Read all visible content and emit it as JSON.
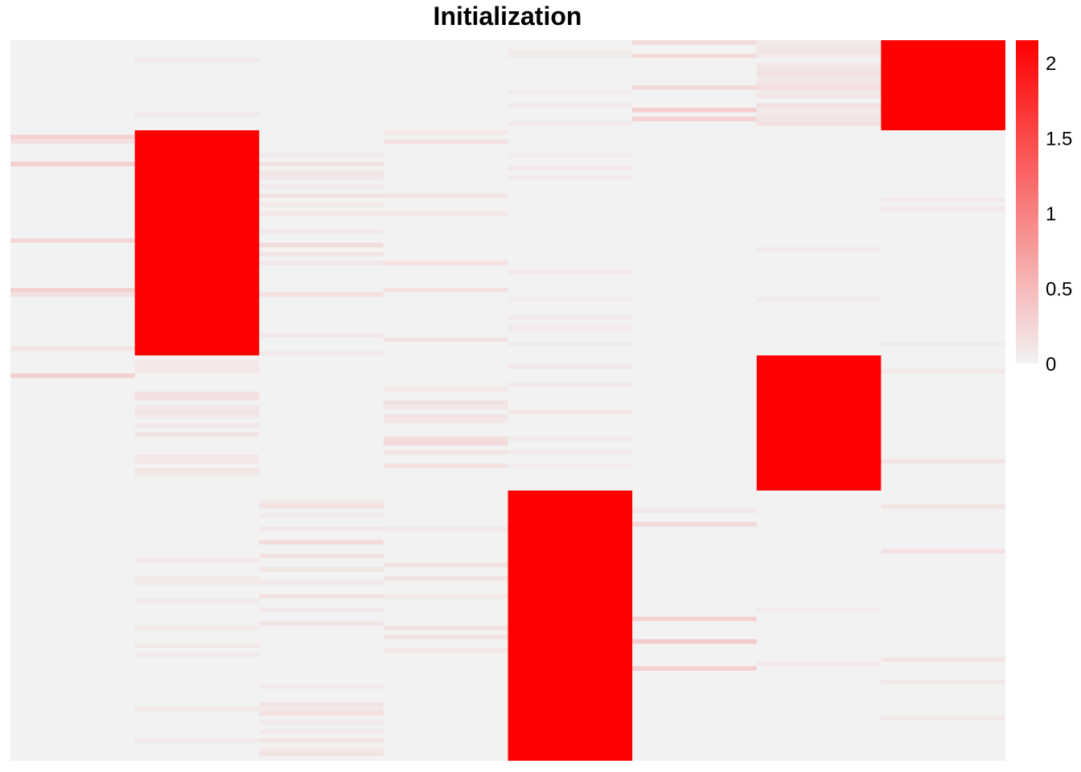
{
  "chart_data": {
    "type": "heatmap",
    "title": "Initialization",
    "n_columns": 8,
    "n_rows": 160,
    "value_range": [
      0,
      2.15
    ],
    "colorscale": {
      "low": "#f2f2f2",
      "high": "#ff0000"
    },
    "background_value": 0,
    "blocks": [
      {
        "column": 1,
        "row_start": 20,
        "row_end": 69,
        "value": 2.15
      },
      {
        "column": 7,
        "row_start": 0,
        "row_end": 19,
        "value": 2.15
      },
      {
        "column": 6,
        "row_start": 70,
        "row_end": 99,
        "value": 2.15
      },
      {
        "column": 4,
        "row_start": 100,
        "row_end": 159,
        "value": 2.15
      }
    ],
    "scattered_cells": [
      [
        0,
        21,
        0.3
      ],
      [
        0,
        22,
        0.15
      ],
      [
        0,
        27,
        0.3
      ],
      [
        0,
        44,
        0.25
      ],
      [
        0,
        55,
        0.3
      ],
      [
        0,
        56,
        0.15
      ],
      [
        0,
        68,
        0.12
      ],
      [
        0,
        74,
        0.3
      ],
      [
        1,
        4,
        0.08
      ],
      [
        1,
        16,
        0.08
      ],
      [
        1,
        71,
        0.1
      ],
      [
        1,
        72,
        0.1
      ],
      [
        1,
        73,
        0.1
      ],
      [
        1,
        78,
        0.15
      ],
      [
        1,
        79,
        0.15
      ],
      [
        1,
        81,
        0.1
      ],
      [
        1,
        82,
        0.12
      ],
      [
        1,
        83,
        0.08
      ],
      [
        1,
        85,
        0.1
      ],
      [
        1,
        87,
        0.12
      ],
      [
        1,
        92,
        0.1
      ],
      [
        1,
        93,
        0.1
      ],
      [
        1,
        95,
        0.12
      ],
      [
        1,
        96,
        0.08
      ],
      [
        1,
        115,
        0.1
      ],
      [
        1,
        119,
        0.1
      ],
      [
        1,
        120,
        0.08
      ],
      [
        1,
        124,
        0.08
      ],
      [
        1,
        130,
        0.08
      ],
      [
        1,
        134,
        0.1
      ],
      [
        1,
        136,
        0.08
      ],
      [
        1,
        148,
        0.1
      ],
      [
        1,
        155,
        0.08
      ],
      [
        2,
        25,
        0.08
      ],
      [
        2,
        27,
        0.15
      ],
      [
        2,
        29,
        0.12
      ],
      [
        2,
        30,
        0.1
      ],
      [
        2,
        32,
        0.08
      ],
      [
        2,
        34,
        0.15
      ],
      [
        2,
        36,
        0.1
      ],
      [
        2,
        38,
        0.1
      ],
      [
        2,
        42,
        0.08
      ],
      [
        2,
        45,
        0.2
      ],
      [
        2,
        47,
        0.12
      ],
      [
        2,
        49,
        0.1
      ],
      [
        2,
        56,
        0.15
      ],
      [
        2,
        65,
        0.1
      ],
      [
        2,
        69,
        0.08
      ],
      [
        2,
        102,
        0.08
      ],
      [
        2,
        103,
        0.15
      ],
      [
        2,
        105,
        0.08
      ],
      [
        2,
        108,
        0.1
      ],
      [
        2,
        111,
        0.2
      ],
      [
        2,
        114,
        0.15
      ],
      [
        2,
        117,
        0.12
      ],
      [
        2,
        120,
        0.1
      ],
      [
        2,
        123,
        0.15
      ],
      [
        2,
        126,
        0.1
      ],
      [
        2,
        129,
        0.12
      ],
      [
        2,
        143,
        0.08
      ],
      [
        2,
        147,
        0.12
      ],
      [
        2,
        148,
        0.1
      ],
      [
        2,
        149,
        0.15
      ],
      [
        2,
        151,
        0.08
      ],
      [
        2,
        153,
        0.1
      ],
      [
        2,
        155,
        0.12
      ],
      [
        2,
        157,
        0.1
      ],
      [
        2,
        158,
        0.12
      ],
      [
        3,
        20,
        0.1
      ],
      [
        3,
        22,
        0.15
      ],
      [
        3,
        34,
        0.12
      ],
      [
        3,
        38,
        0.1
      ],
      [
        3,
        49,
        0.15
      ],
      [
        3,
        55,
        0.15
      ],
      [
        3,
        66,
        0.15
      ],
      [
        3,
        77,
        0.1
      ],
      [
        3,
        80,
        0.15
      ],
      [
        3,
        81,
        0.1
      ],
      [
        3,
        83,
        0.12
      ],
      [
        3,
        84,
        0.1
      ],
      [
        3,
        88,
        0.18
      ],
      [
        3,
        89,
        0.22
      ],
      [
        3,
        91,
        0.12
      ],
      [
        3,
        94,
        0.15
      ],
      [
        3,
        108,
        0.08
      ],
      [
        3,
        116,
        0.15
      ],
      [
        3,
        119,
        0.12
      ],
      [
        3,
        123,
        0.1
      ],
      [
        3,
        130,
        0.15
      ],
      [
        3,
        132,
        0.12
      ],
      [
        3,
        135,
        0.1
      ],
      [
        4,
        2,
        0.08
      ],
      [
        4,
        3,
        0.06
      ],
      [
        4,
        11,
        0.06
      ],
      [
        4,
        14,
        0.08
      ],
      [
        4,
        18,
        0.08
      ],
      [
        4,
        25,
        0.06
      ],
      [
        4,
        28,
        0.1
      ],
      [
        4,
        30,
        0.08
      ],
      [
        4,
        51,
        0.08
      ],
      [
        4,
        57,
        0.06
      ],
      [
        4,
        61,
        0.08
      ],
      [
        4,
        63,
        0.06
      ],
      [
        4,
        64,
        0.06
      ],
      [
        4,
        67,
        0.06
      ],
      [
        4,
        72,
        0.1
      ],
      [
        4,
        76,
        0.08
      ],
      [
        4,
        82,
        0.1
      ],
      [
        4,
        88,
        0.08
      ],
      [
        4,
        91,
        0.08
      ],
      [
        4,
        94,
        0.06
      ],
      [
        5,
        0,
        0.2
      ],
      [
        5,
        3,
        0.2
      ],
      [
        5,
        10,
        0.22
      ],
      [
        5,
        15,
        0.32
      ],
      [
        5,
        17,
        0.28
      ],
      [
        5,
        104,
        0.1
      ],
      [
        5,
        107,
        0.22
      ],
      [
        5,
        128,
        0.28
      ],
      [
        5,
        133,
        0.35
      ],
      [
        5,
        139,
        0.3
      ],
      [
        6,
        0,
        0.08
      ],
      [
        6,
        1,
        0.1
      ],
      [
        6,
        2,
        0.12
      ],
      [
        6,
        3,
        0.06
      ],
      [
        6,
        5,
        0.1
      ],
      [
        6,
        6,
        0.12
      ],
      [
        6,
        7,
        0.15
      ],
      [
        6,
        8,
        0.1
      ],
      [
        6,
        9,
        0.12
      ],
      [
        6,
        10,
        0.18
      ],
      [
        6,
        11,
        0.08
      ],
      [
        6,
        12,
        0.1
      ],
      [
        6,
        14,
        0.15
      ],
      [
        6,
        15,
        0.08
      ],
      [
        6,
        16,
        0.1
      ],
      [
        6,
        17,
        0.12
      ],
      [
        6,
        18,
        0.15
      ],
      [
        6,
        46,
        0.08
      ],
      [
        6,
        57,
        0.08
      ],
      [
        6,
        126,
        0.06
      ],
      [
        6,
        138,
        0.08
      ],
      [
        7,
        35,
        0.08
      ],
      [
        7,
        37,
        0.1
      ],
      [
        7,
        67,
        0.06
      ],
      [
        7,
        73,
        0.1
      ],
      [
        7,
        93,
        0.12
      ],
      [
        7,
        103,
        0.12
      ],
      [
        7,
        113,
        0.15
      ],
      [
        7,
        137,
        0.12
      ],
      [
        7,
        142,
        0.1
      ],
      [
        7,
        150,
        0.1
      ]
    ],
    "colorbar_ticks": [
      "2",
      "1.5",
      "1",
      "0.5",
      "0"
    ],
    "colorbar_tick_values": [
      2,
      1.5,
      1,
      0.5,
      0
    ],
    "legend_position": "right"
  }
}
